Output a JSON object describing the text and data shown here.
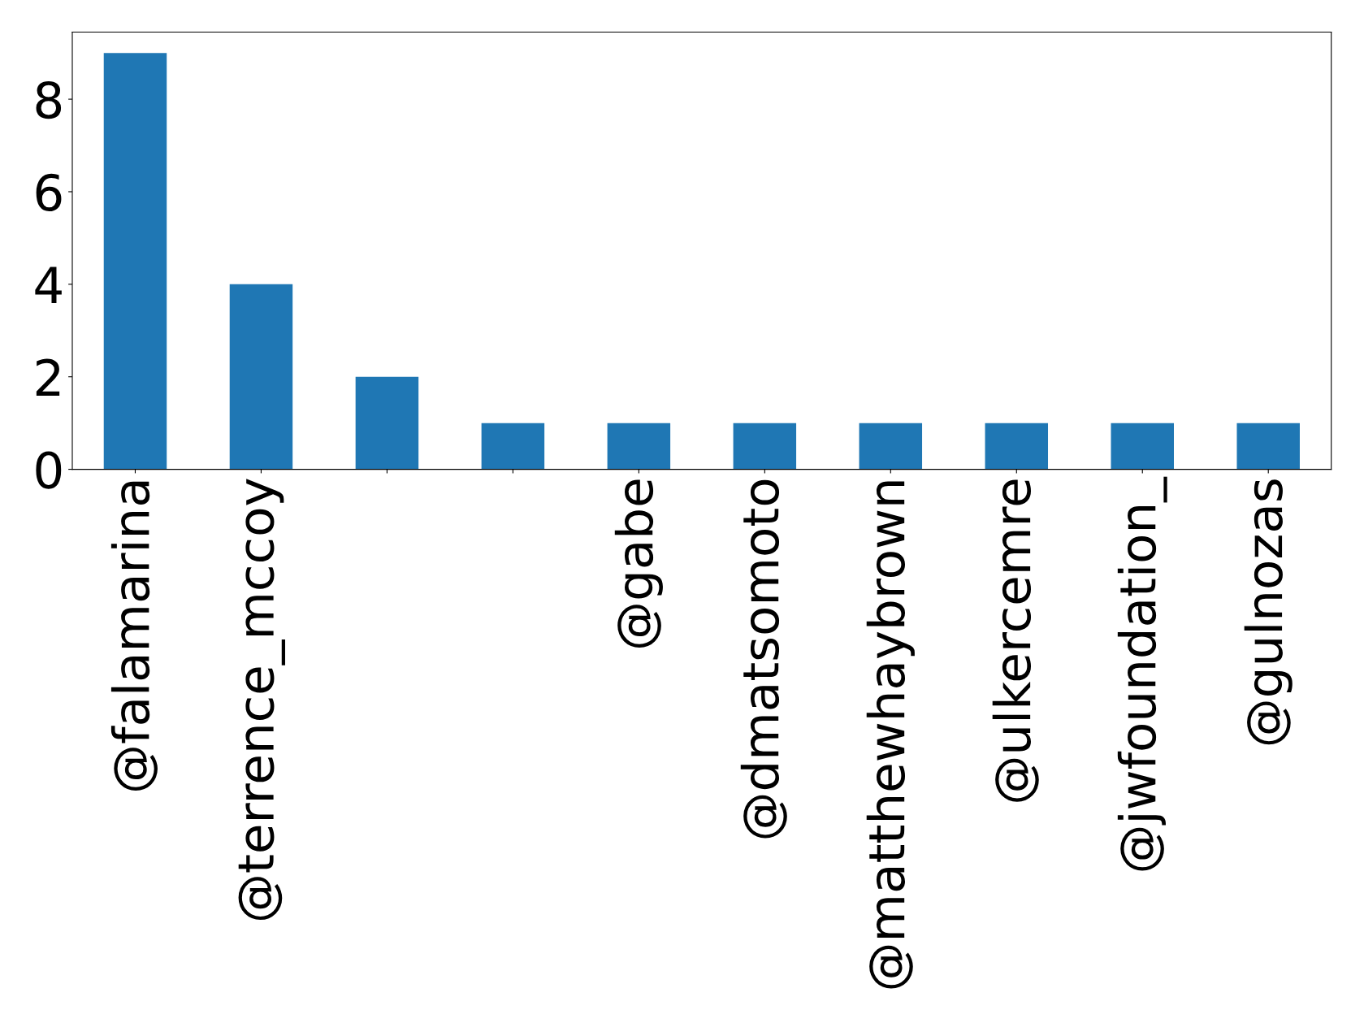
{
  "chart_data": {
    "type": "bar",
    "categories": [
      "@falamarina",
      "@terrence_mccoy",
      null,
      null,
      "@gabe",
      "@dmatsomoto",
      "@matthewhaybrown",
      "@ulkercemre",
      "@jwfoundation_",
      "@gulnozas"
    ],
    "values": [
      9,
      4,
      2,
      1,
      1,
      1,
      1,
      1,
      1,
      1
    ],
    "color": "#1f77b4",
    "ylim": [
      0,
      9.45
    ],
    "yticks": [
      0,
      2,
      4,
      6,
      8
    ],
    "grid": false
  }
}
